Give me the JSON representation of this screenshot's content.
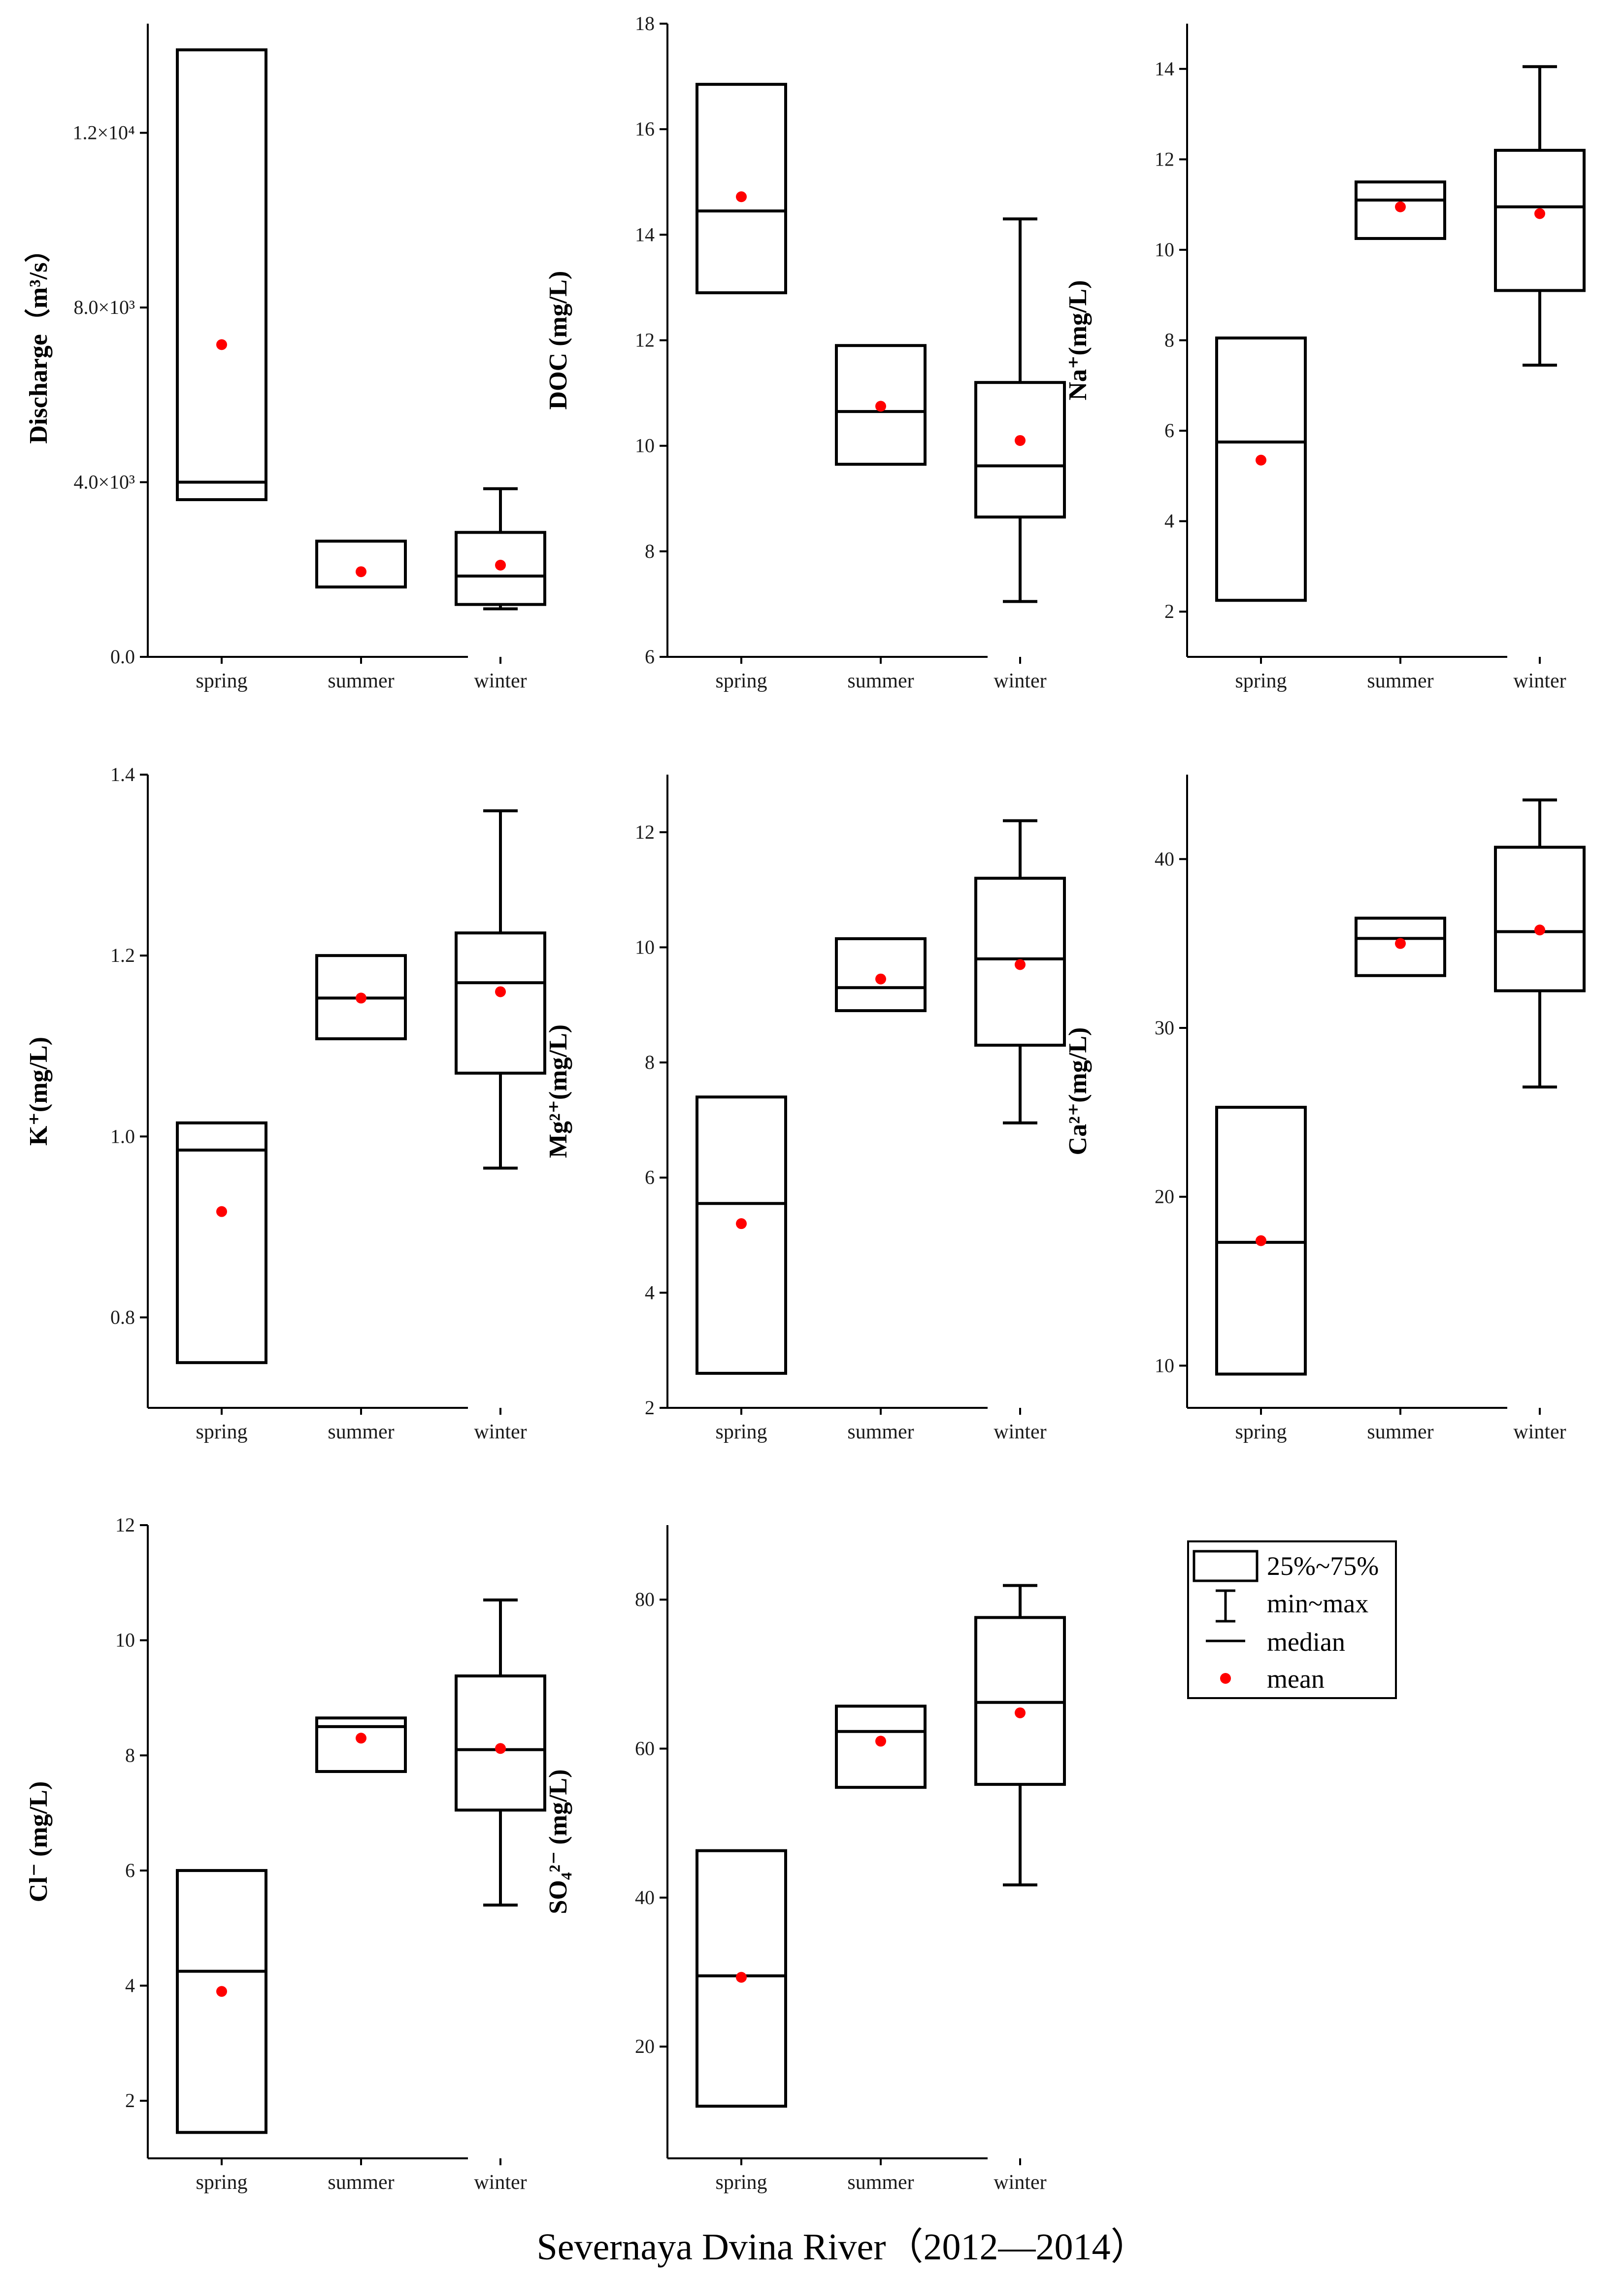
{
  "caption": "Severnaya Dvina River（2012—2014）",
  "mean_color": "#ff0000",
  "legend": {
    "box": "25%~75%",
    "whisker": "min~max",
    "median": "median",
    "mean": "mean"
  },
  "chart_data": [
    {
      "type": "box",
      "ylabel": "Discharge（m³/s）",
      "ylim": [
        0,
        14500
      ],
      "ticks": [
        0,
        4000,
        8000,
        12000
      ],
      "tick_labels": [
        "0.0",
        "4.0×10³",
        "8.0×10³",
        "1.2×10⁴"
      ],
      "categories": [
        "spring",
        "summer",
        "winter"
      ],
      "boxes": [
        {
          "q1": 3600,
          "median": 4000,
          "q3": 13900,
          "min": null,
          "max": null,
          "mean": 7150
        },
        {
          "q1": 1600,
          "median": null,
          "q3": 2650,
          "min": null,
          "max": null,
          "mean": 1950
        },
        {
          "q1": 1200,
          "median": 1850,
          "q3": 2850,
          "min": 1100,
          "max": 3850,
          "mean": 2100
        }
      ]
    },
    {
      "type": "box",
      "ylabel": "DOC (mg/L)",
      "ylim": [
        6,
        18
      ],
      "ticks": [
        6,
        8,
        10,
        12,
        14,
        16,
        18
      ],
      "tick_labels": [
        "6",
        "8",
        "10",
        "12",
        "14",
        "16",
        "18"
      ],
      "categories": [
        "spring",
        "summer",
        "winter"
      ],
      "boxes": [
        {
          "q1": 12.9,
          "median": 14.45,
          "q3": 16.85,
          "min": null,
          "max": null,
          "mean": 14.72
        },
        {
          "q1": 9.65,
          "median": 10.65,
          "q3": 11.9,
          "min": null,
          "max": null,
          "mean": 10.75
        },
        {
          "q1": 8.65,
          "median": 9.62,
          "q3": 11.2,
          "min": 7.05,
          "max": 14.3,
          "mean": 10.1
        }
      ]
    },
    {
      "type": "box",
      "ylabel": "Na⁺(mg/L)",
      "ylim": [
        1,
        15
      ],
      "ticks": [
        2,
        4,
        6,
        8,
        10,
        12,
        14
      ],
      "tick_labels": [
        "2",
        "4",
        "6",
        "8",
        "10",
        "12",
        "14"
      ],
      "categories": [
        "spring",
        "summer",
        "winter"
      ],
      "boxes": [
        {
          "q1": 2.25,
          "median": 5.75,
          "q3": 8.05,
          "min": null,
          "max": null,
          "mean": 5.35
        },
        {
          "q1": 10.25,
          "median": 11.1,
          "q3": 11.5,
          "min": null,
          "max": null,
          "mean": 10.95
        },
        {
          "q1": 9.1,
          "median": 10.95,
          "q3": 12.2,
          "min": 7.45,
          "max": 14.05,
          "mean": 10.8
        }
      ]
    },
    {
      "type": "box",
      "ylabel": "K⁺(mg/L)",
      "ylim": [
        0.7,
        1.4
      ],
      "ticks": [
        0.8,
        1.0,
        1.2,
        1.4
      ],
      "tick_labels": [
        "0.8",
        "1.0",
        "1.2",
        "1.4"
      ],
      "categories": [
        "spring",
        "summer",
        "winter"
      ],
      "boxes": [
        {
          "q1": 0.75,
          "median": 0.985,
          "q3": 1.015,
          "min": null,
          "max": null,
          "mean": 0.917
        },
        {
          "q1": 1.108,
          "median": 1.153,
          "q3": 1.2,
          "min": null,
          "max": null,
          "mean": 1.153
        },
        {
          "q1": 1.07,
          "median": 1.17,
          "q3": 1.225,
          "min": 0.965,
          "max": 1.36,
          "mean": 1.16
        }
      ]
    },
    {
      "type": "box",
      "ylabel": "Mg²⁺(mg/L)",
      "ylim": [
        2,
        13
      ],
      "ticks": [
        2,
        4,
        6,
        8,
        10,
        12
      ],
      "tick_labels": [
        "2",
        "4",
        "6",
        "8",
        "10",
        "12"
      ],
      "categories": [
        "spring",
        "summer",
        "winter"
      ],
      "boxes": [
        {
          "q1": 2.6,
          "median": 5.55,
          "q3": 7.4,
          "min": null,
          "max": null,
          "mean": 5.2
        },
        {
          "q1": 8.9,
          "median": 9.3,
          "q3": 10.15,
          "min": null,
          "max": null,
          "mean": 9.45
        },
        {
          "q1": 8.3,
          "median": 9.8,
          "q3": 11.2,
          "min": 6.95,
          "max": 12.2,
          "mean": 9.7
        }
      ]
    },
    {
      "type": "box",
      "ylabel": "Ca²⁺(mg/L)",
      "ylim": [
        7.5,
        45
      ],
      "ticks": [
        10,
        20,
        30,
        40
      ],
      "tick_labels": [
        "10",
        "20",
        "30",
        "40"
      ],
      "categories": [
        "spring",
        "summer",
        "winter"
      ],
      "boxes": [
        {
          "q1": 9.5,
          "median": 17.3,
          "q3": 25.3,
          "min": null,
          "max": null,
          "mean": 17.4
        },
        {
          "q1": 33.1,
          "median": 35.3,
          "q3": 36.5,
          "min": null,
          "max": null,
          "mean": 35.0
        },
        {
          "q1": 32.2,
          "median": 35.7,
          "q3": 40.7,
          "min": 26.5,
          "max": 43.5,
          "mean": 35.8
        }
      ]
    },
    {
      "type": "box",
      "ylabel": "Cl⁻ (mg/L)",
      "ylim": [
        1,
        12
      ],
      "ticks": [
        2,
        4,
        6,
        8,
        10,
        12
      ],
      "tick_labels": [
        "2",
        "4",
        "6",
        "8",
        "10",
        "12"
      ],
      "categories": [
        "spring",
        "summer",
        "winter"
      ],
      "boxes": [
        {
          "q1": 1.45,
          "median": 4.25,
          "q3": 6.0,
          "min": null,
          "max": null,
          "mean": 3.9
        },
        {
          "q1": 7.72,
          "median": 8.5,
          "q3": 8.65,
          "min": null,
          "max": null,
          "mean": 8.3
        },
        {
          "q1": 7.05,
          "median": 8.1,
          "q3": 9.38,
          "min": 5.4,
          "max": 10.7,
          "mean": 8.12
        }
      ]
    },
    {
      "type": "box",
      "ylabel": "SO₄²⁻ (mg/L)",
      "ylim": [
        5,
        90
      ],
      "ticks": [
        20,
        40,
        60,
        80
      ],
      "tick_labels": [
        "20",
        "40",
        "60",
        "80"
      ],
      "categories": [
        "spring",
        "summer",
        "winter"
      ],
      "boxes": [
        {
          "q1": 12.0,
          "median": 29.5,
          "q3": 46.3,
          "min": null,
          "max": null,
          "mean": 29.3
        },
        {
          "q1": 54.8,
          "median": 62.3,
          "q3": 65.7,
          "min": null,
          "max": null,
          "mean": 61.0
        },
        {
          "q1": 55.2,
          "median": 66.2,
          "q3": 77.6,
          "min": 41.7,
          "max": 81.9,
          "mean": 64.8
        }
      ]
    }
  ]
}
